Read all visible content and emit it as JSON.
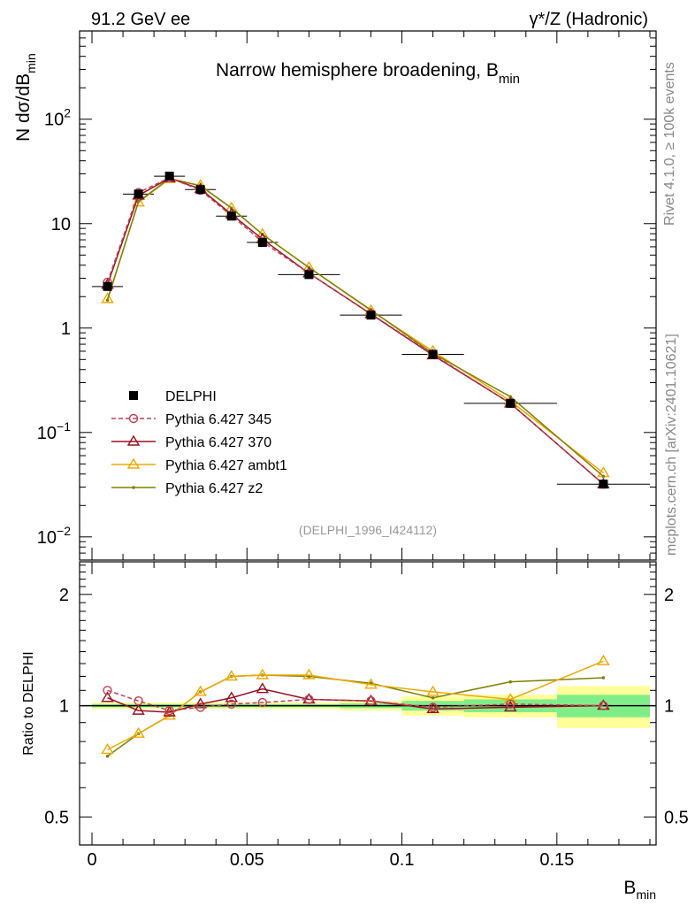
{
  "header": {
    "left": "91.2 GeV ee",
    "right": "γ*/Z (Hadronic)"
  },
  "side_text": {
    "rivet": "Rivet 4.1.0, ≥ 100k events",
    "mcplots": "mcplots.cern.ch [arXiv:2401.10621]"
  },
  "chart_data": [
    {
      "type": "line",
      "panel": "main",
      "scale": "log",
      "title": "Narrow hemisphere broadening, B",
      "title_sub": "min",
      "ylabel_main": "N  dσ/dB",
      "ylabel_sub": "min",
      "watermark": "(DELPHI_1996_I424112)",
      "xlim": [
        -0.004,
        0.182
      ],
      "ylim": [
        0.006,
        700
      ],
      "y_tick_labels": [
        {
          "value": 0.01,
          "base": "10",
          "exp": "−2"
        },
        {
          "value": 0.1,
          "base": "10",
          "exp": "−1"
        },
        {
          "value": 1,
          "base": "1",
          "exp": ""
        },
        {
          "value": 10,
          "base": "10",
          "exp": ""
        },
        {
          "value": 100,
          "base": "10",
          "exp": "2"
        }
      ],
      "x": [
        0.005,
        0.015,
        0.025,
        0.035,
        0.045,
        0.055,
        0.07,
        0.09,
        0.11,
        0.135,
        0.165
      ],
      "x_bins": [
        [
          0,
          0.01
        ],
        [
          0.01,
          0.02
        ],
        [
          0.02,
          0.03
        ],
        [
          0.03,
          0.04
        ],
        [
          0.04,
          0.05
        ],
        [
          0.05,
          0.06
        ],
        [
          0.06,
          0.08
        ],
        [
          0.08,
          0.1
        ],
        [
          0.1,
          0.12
        ],
        [
          0.12,
          0.15
        ],
        [
          0.15,
          0.18
        ]
      ],
      "series": [
        {
          "name": "DELPHI",
          "color": "#000000",
          "marker": "square",
          "line": "none",
          "values": [
            2.5,
            19.2,
            28.5,
            21.2,
            11.8,
            6.6,
            3.25,
            1.33,
            0.56,
            0.19,
            0.032
          ]
        },
        {
          "name": "Pythia 6.427 345",
          "color": "#c0405a",
          "marker": "circle",
          "line": "dashed",
          "values": [
            2.75,
            19.8,
            27.5,
            20.9,
            11.9,
            6.7,
            3.35,
            1.37,
            0.56,
            0.19,
            0.032
          ]
        },
        {
          "name": "Pythia 6.427 370",
          "color": "#9a1020",
          "marker": "triangle",
          "line": "solid",
          "values": [
            2.6,
            18.6,
            27.3,
            21.5,
            12.3,
            7.1,
            3.35,
            1.36,
            0.55,
            0.19,
            0.032
          ]
        },
        {
          "name": "Pythia 6.427 ambt1",
          "color": "#f0a800",
          "marker": "triangle",
          "line": "solid",
          "values": [
            1.9,
            16.0,
            26.8,
            23.2,
            14.1,
            7.9,
            3.8,
            1.47,
            0.6,
            0.2,
            0.041
          ]
        },
        {
          "name": "Pythia 6.427 z2",
          "color": "#808000",
          "marker": "dot",
          "line": "solid",
          "values": [
            1.85,
            16.3,
            27.1,
            23.0,
            14.1,
            7.9,
            3.8,
            1.49,
            0.57,
            0.22,
            0.038
          ]
        }
      ]
    },
    {
      "type": "line",
      "panel": "ratio",
      "ylabel": "Ratio to DELPHI",
      "xlabel": "B",
      "xlabel_sub": "min",
      "xlim": [
        -0.004,
        0.182
      ],
      "ylim": [
        0.42,
        2.45
      ],
      "x_tick_labels": [
        {
          "value": 0,
          "label": "0"
        },
        {
          "value": 0.05,
          "label": "0.05"
        },
        {
          "value": 0.1,
          "label": "0.1"
        },
        {
          "value": 0.15,
          "label": "0.15"
        }
      ],
      "y_tick_labels": [
        {
          "value": 0.5,
          "label": "0.5"
        },
        {
          "value": 1,
          "label": "1"
        },
        {
          "value": 2,
          "label": "2"
        }
      ],
      "band_exp": [
        {
          "x0": 0.0,
          "x1": 0.08,
          "inner": [
            0.99,
            1.01
          ],
          "outer": [
            0.98,
            1.02
          ]
        },
        {
          "x0": 0.08,
          "x1": 0.1,
          "inner": [
            0.985,
            1.015
          ],
          "outer": [
            0.97,
            1.03
          ]
        },
        {
          "x0": 0.1,
          "x1": 0.12,
          "inner": [
            0.97,
            1.03
          ],
          "outer": [
            0.94,
            1.06
          ]
        },
        {
          "x0": 0.12,
          "x1": 0.15,
          "inner": [
            0.96,
            1.04
          ],
          "outer": [
            0.93,
            1.07
          ]
        },
        {
          "x0": 0.15,
          "x1": 0.18,
          "inner": [
            0.93,
            1.07
          ],
          "outer": [
            0.87,
            1.13
          ]
        }
      ],
      "x": [
        0.005,
        0.015,
        0.025,
        0.035,
        0.045,
        0.055,
        0.07,
        0.09,
        0.11,
        0.135,
        0.165
      ],
      "series": [
        {
          "name": "Pythia 6.427 345",
          "color": "#c0405a",
          "marker": "circle",
          "line": "dashed",
          "values": [
            1.1,
            1.03,
            0.97,
            0.99,
            1.01,
            1.02,
            1.04,
            1.03,
            0.99,
            1.01,
            1.0
          ]
        },
        {
          "name": "Pythia 6.427 370",
          "color": "#9a1020",
          "marker": "triangle",
          "line": "solid",
          "values": [
            1.05,
            0.97,
            0.96,
            1.01,
            1.05,
            1.11,
            1.04,
            1.03,
            0.98,
            0.99,
            1.0
          ]
        },
        {
          "name": "Pythia 6.427 ambt1",
          "color": "#f0a800",
          "marker": "triangle",
          "line": "solid",
          "values": [
            0.76,
            0.84,
            0.94,
            1.09,
            1.2,
            1.21,
            1.21,
            1.14,
            1.09,
            1.04,
            1.32
          ]
        },
        {
          "name": "Pythia 6.427 z2",
          "color": "#808000",
          "marker": "dot",
          "line": "solid",
          "values": [
            0.73,
            0.84,
            0.94,
            1.09,
            1.2,
            1.21,
            1.2,
            1.15,
            1.05,
            1.16,
            1.19
          ]
        }
      ]
    }
  ]
}
